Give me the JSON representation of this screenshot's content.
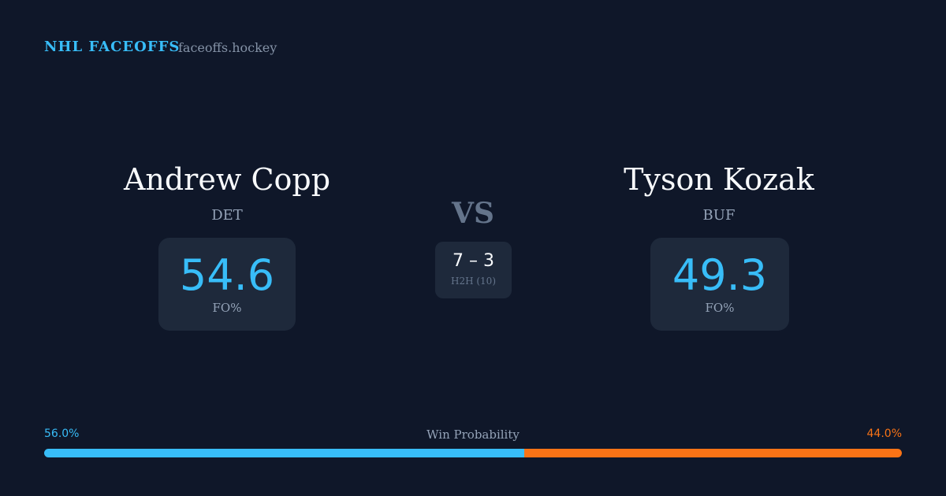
{
  "header": {
    "brand": "NHL FACEOFFS",
    "site": "faceoffs.hockey"
  },
  "players": [
    {
      "name": "Andrew Copp",
      "team": "DET",
      "stat": "54.6",
      "stat_label": "FO%"
    },
    {
      "name": "Tyson Kozak",
      "team": "BUF",
      "stat": "49.3",
      "stat_label": "FO%"
    }
  ],
  "versus": "VS",
  "h2h": {
    "score": "7 – 3",
    "label": "H2H (10)"
  },
  "win_probability": {
    "title": "Win Probability",
    "home": {
      "value": 56.0,
      "label": "56.0%",
      "color": "#38bdf8"
    },
    "away": {
      "value": 44.0,
      "label": "44.0%",
      "color": "#f97316"
    }
  }
}
